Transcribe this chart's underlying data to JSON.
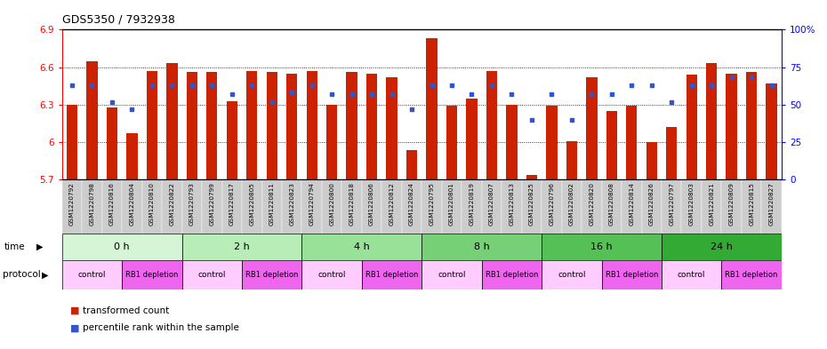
{
  "title": "GDS5350 / 7932938",
  "samples": [
    "GSM1220792",
    "GSM1220798",
    "GSM1220816",
    "GSM1220804",
    "GSM1220810",
    "GSM1220822",
    "GSM1220793",
    "GSM1220799",
    "GSM1220817",
    "GSM1220805",
    "GSM1220811",
    "GSM1220823",
    "GSM1220794",
    "GSM1220800",
    "GSM1220818",
    "GSM1220806",
    "GSM1220812",
    "GSM1220824",
    "GSM1220795",
    "GSM1220801",
    "GSM1220819",
    "GSM1220807",
    "GSM1220813",
    "GSM1220825",
    "GSM1220796",
    "GSM1220802",
    "GSM1220820",
    "GSM1220808",
    "GSM1220814",
    "GSM1220826",
    "GSM1220797",
    "GSM1220803",
    "GSM1220821",
    "GSM1220809",
    "GSM1220815",
    "GSM1220827"
  ],
  "red_values": [
    6.3,
    6.65,
    6.28,
    6.07,
    6.57,
    6.63,
    6.56,
    6.56,
    6.33,
    6.57,
    6.56,
    6.55,
    6.57,
    6.3,
    6.56,
    6.55,
    6.52,
    5.94,
    6.83,
    6.29,
    6.35,
    6.57,
    6.3,
    5.74,
    6.29,
    6.01,
    6.52,
    6.25,
    6.29,
    6.0,
    6.12,
    6.54,
    6.63,
    6.55,
    6.56,
    6.47
  ],
  "blue_values": [
    63,
    63,
    52,
    47,
    63,
    63,
    63,
    63,
    57,
    63,
    52,
    58,
    63,
    57,
    57,
    57,
    57,
    47,
    63,
    63,
    57,
    63,
    57,
    40,
    57,
    40,
    57,
    57,
    63,
    63,
    52,
    63,
    63,
    68,
    68,
    63
  ],
  "time_groups": [
    {
      "label": "0 h",
      "start": 0,
      "end": 6,
      "color": "#d6f5d6"
    },
    {
      "label": "2 h",
      "start": 6,
      "end": 12,
      "color": "#b8edb8"
    },
    {
      "label": "4 h",
      "start": 12,
      "end": 18,
      "color": "#99e099"
    },
    {
      "label": "8 h",
      "start": 18,
      "end": 24,
      "color": "#77d077"
    },
    {
      "label": "16 h",
      "start": 24,
      "end": 30,
      "color": "#55c055"
    },
    {
      "label": "24 h",
      "start": 30,
      "end": 36,
      "color": "#33aa33"
    }
  ],
  "protocol_groups": [
    {
      "label": "control",
      "start": 0,
      "end": 3,
      "color": "#ffccff"
    },
    {
      "label": "RB1 depletion",
      "start": 3,
      "end": 6,
      "color": "#ee66ee"
    },
    {
      "label": "control",
      "start": 6,
      "end": 9,
      "color": "#ffccff"
    },
    {
      "label": "RB1 depletion",
      "start": 9,
      "end": 12,
      "color": "#ee66ee"
    },
    {
      "label": "control",
      "start": 12,
      "end": 15,
      "color": "#ffccff"
    },
    {
      "label": "RB1 depletion",
      "start": 15,
      "end": 18,
      "color": "#ee66ee"
    },
    {
      "label": "control",
      "start": 18,
      "end": 21,
      "color": "#ffccff"
    },
    {
      "label": "RB1 depletion",
      "start": 21,
      "end": 24,
      "color": "#ee66ee"
    },
    {
      "label": "control",
      "start": 24,
      "end": 27,
      "color": "#ffccff"
    },
    {
      "label": "RB1 depletion",
      "start": 27,
      "end": 30,
      "color": "#ee66ee"
    },
    {
      "label": "control",
      "start": 30,
      "end": 33,
      "color": "#ffccff"
    },
    {
      "label": "RB1 depletion",
      "start": 33,
      "end": 36,
      "color": "#ee66ee"
    }
  ],
  "y_min": 5.7,
  "y_max": 6.9,
  "y_ticks": [
    5.7,
    6.0,
    6.3,
    6.6,
    6.9
  ],
  "y2_ticks": [
    0,
    25,
    50,
    75,
    100
  ],
  "bar_color": "#cc2200",
  "dot_color": "#3355cc",
  "tick_bg_color": "#cccccc",
  "label_row_bg": "#dddddd"
}
